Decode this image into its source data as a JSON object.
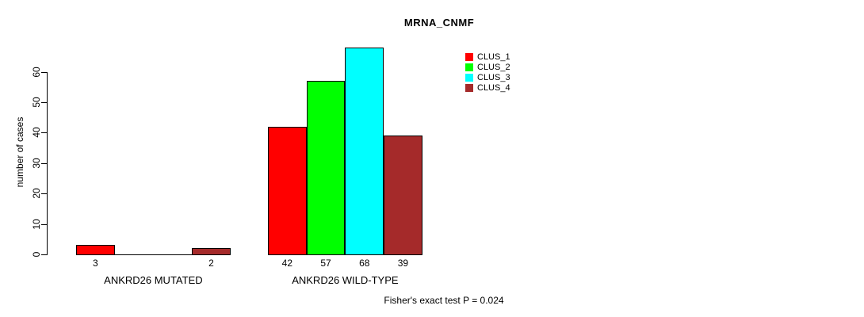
{
  "title": "MRNA_CNMF",
  "ylabel": "number of cases",
  "footer": "Fisher's exact test P = 0.024",
  "chart_data": {
    "type": "bar",
    "title": "MRNA_CNMF",
    "xlabel": "",
    "ylabel": "number of cases",
    "yticks": [
      0,
      10,
      20,
      30,
      40,
      50,
      60
    ],
    "ylim": [
      0,
      68
    ],
    "grid": false,
    "legend_position": "top-right",
    "series_names": [
      "CLUS_1",
      "CLUS_2",
      "CLUS_3",
      "CLUS_4"
    ],
    "series_colors": [
      "#ff0000",
      "#00ff00",
      "#00ffff",
      "#a52a2a"
    ],
    "groups": [
      {
        "label": "ANKRD26 MUTATED",
        "values": [
          3,
          0,
          0,
          2
        ]
      },
      {
        "label": "ANKRD26 WILD-TYPE",
        "values": [
          42,
          57,
          68,
          39
        ]
      }
    ],
    "bar_value_labels_shown_for_nonzero_only": true,
    "annotation": "Fisher's exact test P = 0.024"
  }
}
